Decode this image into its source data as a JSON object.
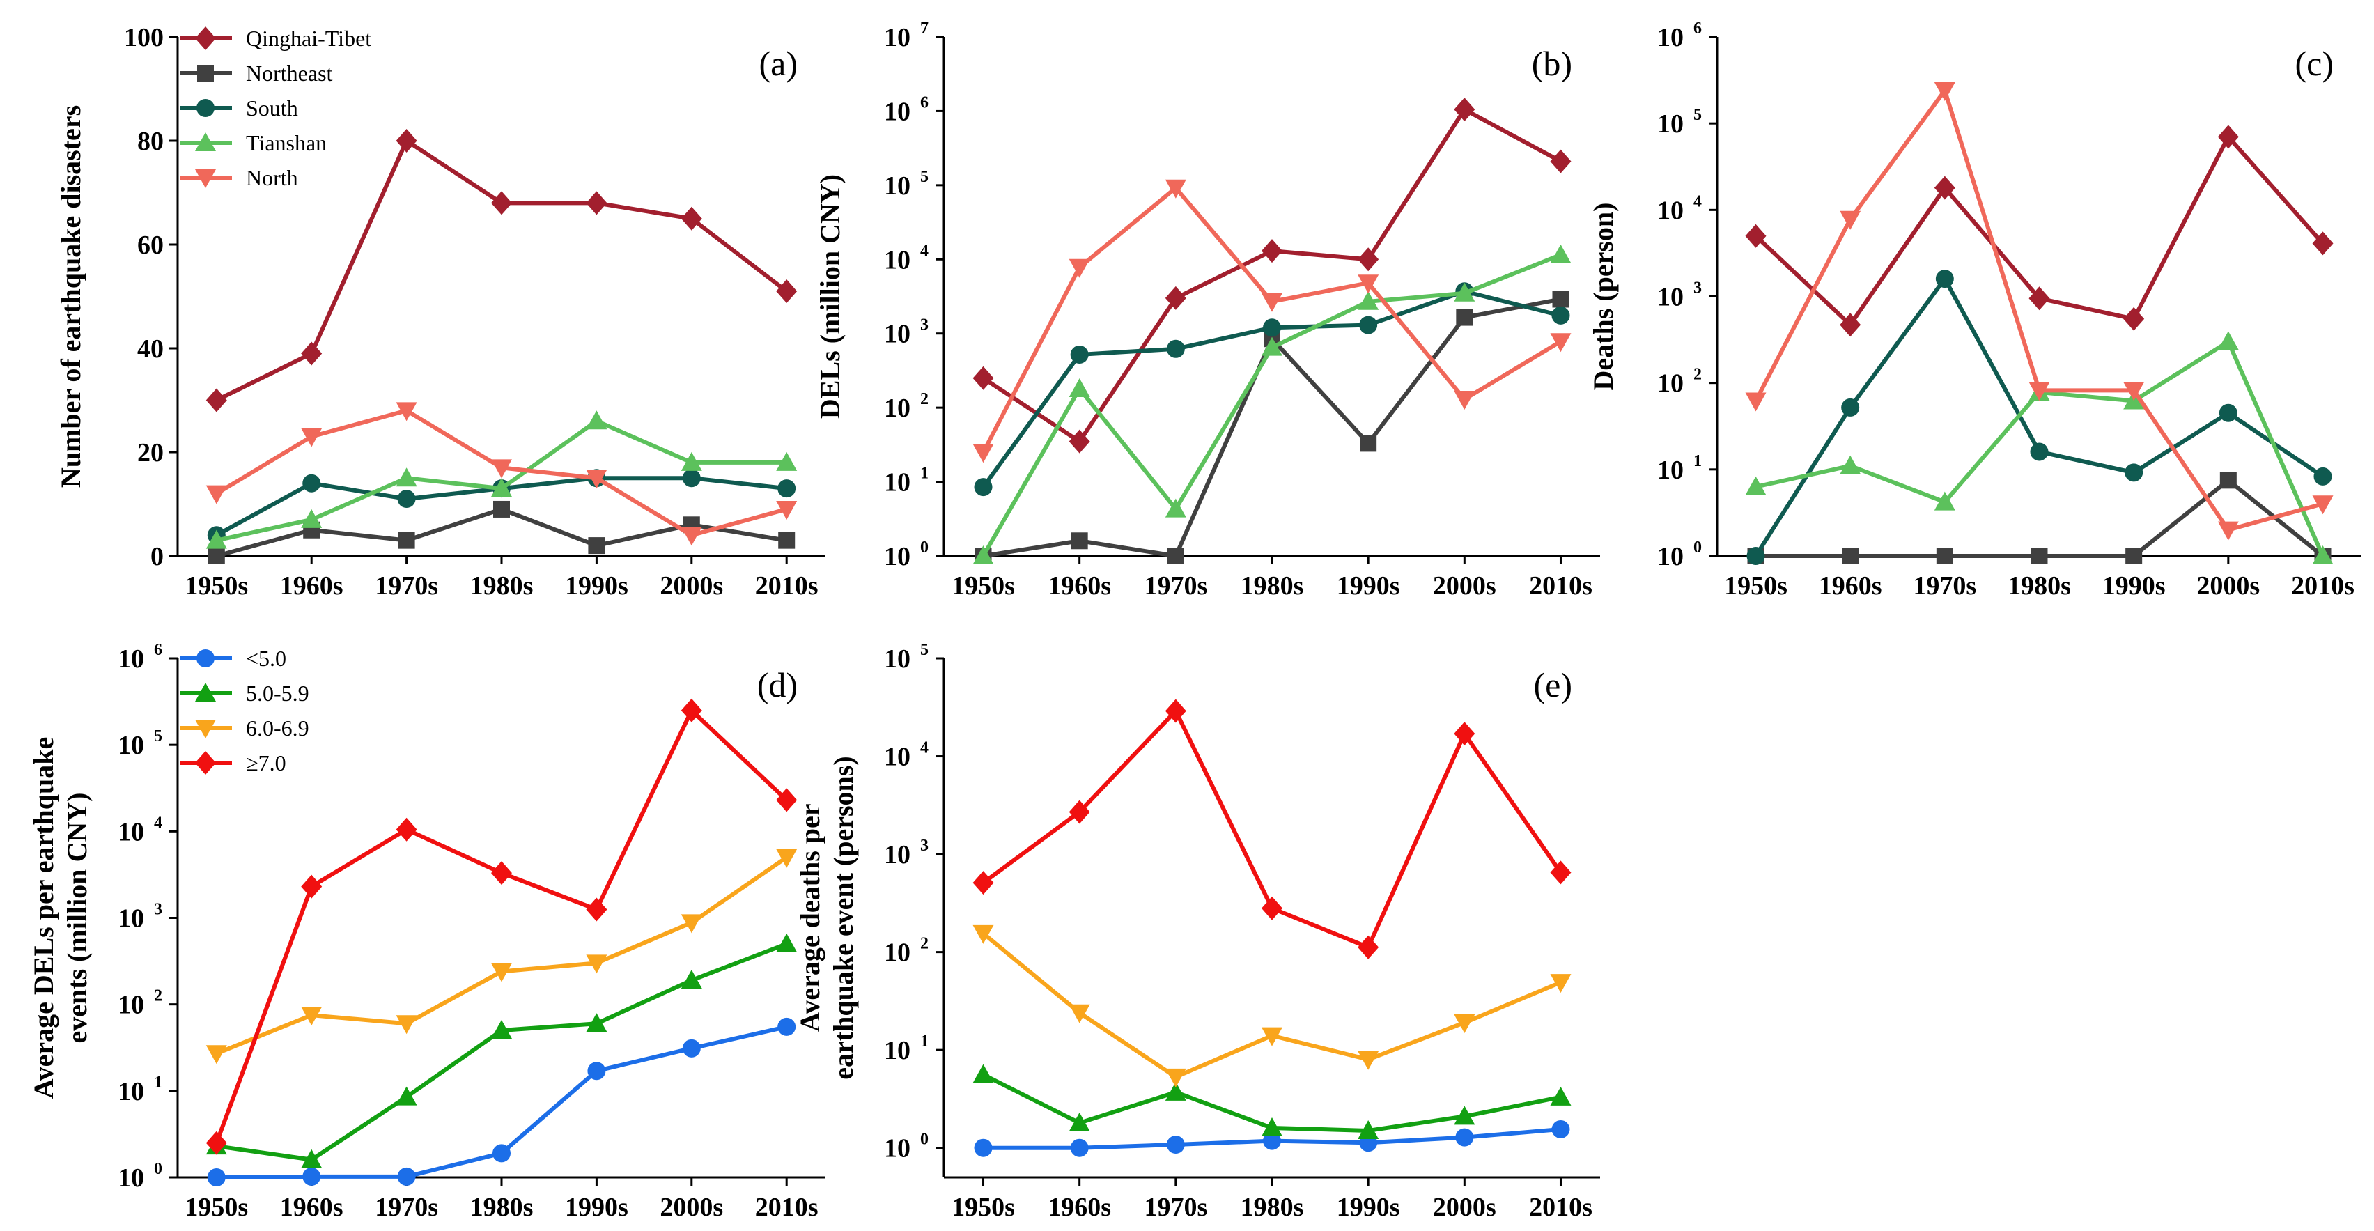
{
  "figure": {
    "categories": [
      "1950s",
      "1960s",
      "1970s",
      "1980s",
      "1990s",
      "2000s",
      "2010s"
    ]
  },
  "colors": {
    "Qinghai-Tibet": "#a21f2e",
    "Northeast": "#404040",
    "South": "#0f5a50",
    "Tianshan": "#5cc15c",
    "North": "#f0685a",
    "<5.0": "#1c6ee8",
    "5.0-5.9": "#12a012",
    "6.0-6.9": "#f9a51c",
    "≥7.0": "#f01010"
  },
  "chart_data": [
    {
      "id": "a",
      "type": "line",
      "panel_label": "(a)",
      "ylabel": "Number of  earthquake disasters",
      "xlabel": "",
      "scale": "linear",
      "ylim": [
        0,
        100
      ],
      "yticks": [
        "0",
        "20",
        "40",
        "60",
        "80",
        "100"
      ],
      "categories": [
        "1950s",
        "1960s",
        "1970s",
        "1980s",
        "1990s",
        "2000s",
        "2010s"
      ],
      "legend": {
        "position": "top-left",
        "entries": [
          "Qinghai-Tibet",
          "Northeast",
          "South",
          "Tianshan",
          "North"
        ]
      },
      "series": [
        {
          "name": "Qinghai-Tibet",
          "marker": "diamond",
          "values": [
            30,
            39,
            80,
            68,
            68,
            65,
            51
          ]
        },
        {
          "name": "Northeast",
          "marker": "square",
          "values": [
            0,
            5,
            3,
            9,
            2,
            6,
            3
          ]
        },
        {
          "name": "South",
          "marker": "circle",
          "values": [
            4,
            14,
            11,
            13,
            15,
            15,
            13
          ]
        },
        {
          "name": "Tianshan",
          "marker": "triangle-up",
          "values": [
            3,
            7,
            15,
            13,
            26,
            18,
            18
          ]
        },
        {
          "name": "North",
          "marker": "triangle-down",
          "values": [
            12,
            23,
            28,
            17,
            15,
            4,
            9
          ]
        }
      ]
    },
    {
      "id": "b",
      "type": "line",
      "panel_label": "(b)",
      "ylabel": "DELs (million CNY)",
      "xlabel": "",
      "scale": "log",
      "ylim": [
        1,
        10000000
      ],
      "yticks": [
        {
          "base": "10",
          "exp": "0"
        },
        {
          "base": "10",
          "exp": "1"
        },
        {
          "base": "10",
          "exp": "2"
        },
        {
          "base": "10",
          "exp": "3"
        },
        {
          "base": "10",
          "exp": "4"
        },
        {
          "base": "10",
          "exp": "5"
        },
        {
          "base": "10",
          "exp": "6"
        },
        {
          "base": "10",
          "exp": "7"
        }
      ],
      "categories": [
        "1950s",
        "1960s",
        "1970s",
        "1980s",
        "1990s",
        "2000s",
        "2010s"
      ],
      "series": [
        {
          "name": "Qinghai-Tibet",
          "marker": "diamond",
          "values": [
            250,
            35,
            3000,
            13000,
            10000,
            1050000,
            210000
          ]
        },
        {
          "name": "Northeast",
          "marker": "square",
          "values": [
            1,
            1.6,
            1,
            850,
            33,
            1650,
            2900
          ]
        },
        {
          "name": "South",
          "marker": "circle",
          "values": [
            8.5,
            520,
            620,
            1200,
            1300,
            3700,
            1750
          ]
        },
        {
          "name": "Tianshan",
          "marker": "triangle-up",
          "values": [
            1,
            180,
            4.3,
            650,
            2700,
            3500,
            11500
          ]
        },
        {
          "name": "North",
          "marker": "triangle-down",
          "values": [
            25,
            7800,
            92000,
            2700,
            4800,
            130,
            780
          ]
        }
      ]
    },
    {
      "id": "c",
      "type": "line",
      "panel_label": "(c)",
      "ylabel": "Deaths (person)",
      "xlabel": "",
      "scale": "log",
      "ylim": [
        1,
        1000000
      ],
      "yticks": [
        {
          "base": "10",
          "exp": "0"
        },
        {
          "base": "10",
          "exp": "1"
        },
        {
          "base": "10",
          "exp": "2"
        },
        {
          "base": "10",
          "exp": "3"
        },
        {
          "base": "10",
          "exp": "4"
        },
        {
          "base": "10",
          "exp": "5"
        },
        {
          "base": "10",
          "exp": "6"
        }
      ],
      "categories": [
        "1950s",
        "1960s",
        "1970s",
        "1980s",
        "1990s",
        "2000s",
        "2010s"
      ],
      "series": [
        {
          "name": "Qinghai-Tibet",
          "marker": "diamond",
          "values": [
            5000,
            470,
            18000,
            950,
            550,
            70000,
            4100
          ]
        },
        {
          "name": "Northeast",
          "marker": "square",
          "values": [
            1,
            1,
            1,
            1,
            1,
            7.5,
            1
          ]
        },
        {
          "name": "South",
          "marker": "circle",
          "values": [
            1,
            52,
            1600,
            16,
            9.2,
            45,
            8.3
          ]
        },
        {
          "name": "Tianshan",
          "marker": "triangle-up",
          "values": [
            6.3,
            11,
            4.2,
            78,
            62,
            300,
            1
          ]
        },
        {
          "name": "North",
          "marker": "triangle-down",
          "values": [
            62,
            7800,
            240000,
            82,
            82,
            2,
            4
          ]
        }
      ]
    },
    {
      "id": "d",
      "type": "line",
      "panel_label": "(d)",
      "ylabel": "Average DELs per earthquake events (million CNY)",
      "ylabel_lines": [
        "Average DELs per earthquake",
        "events (million CNY)"
      ],
      "xlabel": "",
      "scale": "log",
      "ylim": [
        1,
        1000000
      ],
      "yticks": [
        {
          "base": "10",
          "exp": "0"
        },
        {
          "base": "10",
          "exp": "1"
        },
        {
          "base": "10",
          "exp": "2"
        },
        {
          "base": "10",
          "exp": "3"
        },
        {
          "base": "10",
          "exp": "4"
        },
        {
          "base": "10",
          "exp": "5"
        },
        {
          "base": "10",
          "exp": "6"
        }
      ],
      "categories": [
        "1950s",
        "1960s",
        "1970s",
        "1980s",
        "1990s",
        "2000s",
        "2010s"
      ],
      "legend": {
        "position": "top-left",
        "entries": [
          "<5.0",
          "5.0-5.9",
          "6.0-6.9",
          "≥7.0"
        ]
      },
      "series": [
        {
          "name": "<5.0",
          "marker": "circle",
          "values": [
            1,
            1.02,
            1.02,
            1.9,
            17,
            31,
            55
          ]
        },
        {
          "name": "5.0-5.9",
          "marker": "triangle-up",
          "values": [
            2.3,
            1.6,
            8.5,
            50,
            60,
            190,
            500
          ]
        },
        {
          "name": "6.0-6.9",
          "marker": "triangle-down",
          "values": [
            27,
            75,
            60,
            240,
            300,
            880,
            5000
          ]
        },
        {
          "name": "≥7.0",
          "marker": "diamond",
          "values": [
            2.5,
            2300,
            10500,
            3300,
            1250,
            250000,
            23000
          ]
        }
      ]
    },
    {
      "id": "e",
      "type": "line",
      "panel_label": "(e)",
      "ylabel": "Average deaths per earthquake event (persons)",
      "ylabel_lines": [
        "Average deaths per",
        "earthquake event (persons)"
      ],
      "xlabel": "",
      "scale": "log",
      "ylim": [
        0.5,
        100000
      ],
      "yticks": [
        {
          "base": "10",
          "exp": "0"
        },
        {
          "base": "10",
          "exp": "1"
        },
        {
          "base": "10",
          "exp": "2"
        },
        {
          "base": "10",
          "exp": "3"
        },
        {
          "base": "10",
          "exp": "4"
        },
        {
          "base": "10",
          "exp": "5"
        }
      ],
      "categories": [
        "1950s",
        "1960s",
        "1970s",
        "1980s",
        "1990s",
        "2000s",
        "2010s"
      ],
      "series": [
        {
          "name": "<5.0",
          "marker": "circle",
          "values": [
            1,
            1,
            1.08,
            1.18,
            1.13,
            1.28,
            1.55
          ]
        },
        {
          "name": "5.0-5.9",
          "marker": "triangle-up",
          "values": [
            5.6,
            1.8,
            3.7,
            1.6,
            1.5,
            2.1,
            3.3
          ]
        },
        {
          "name": "6.0-6.9",
          "marker": "triangle-down",
          "values": [
            155,
            24,
            5.3,
            14,
            8,
            19,
            49
          ]
        },
        {
          "name": "≥7.0",
          "marker": "diamond",
          "values": [
            510,
            2700,
            29000,
            280,
            112,
            17000,
            650
          ]
        }
      ]
    }
  ]
}
